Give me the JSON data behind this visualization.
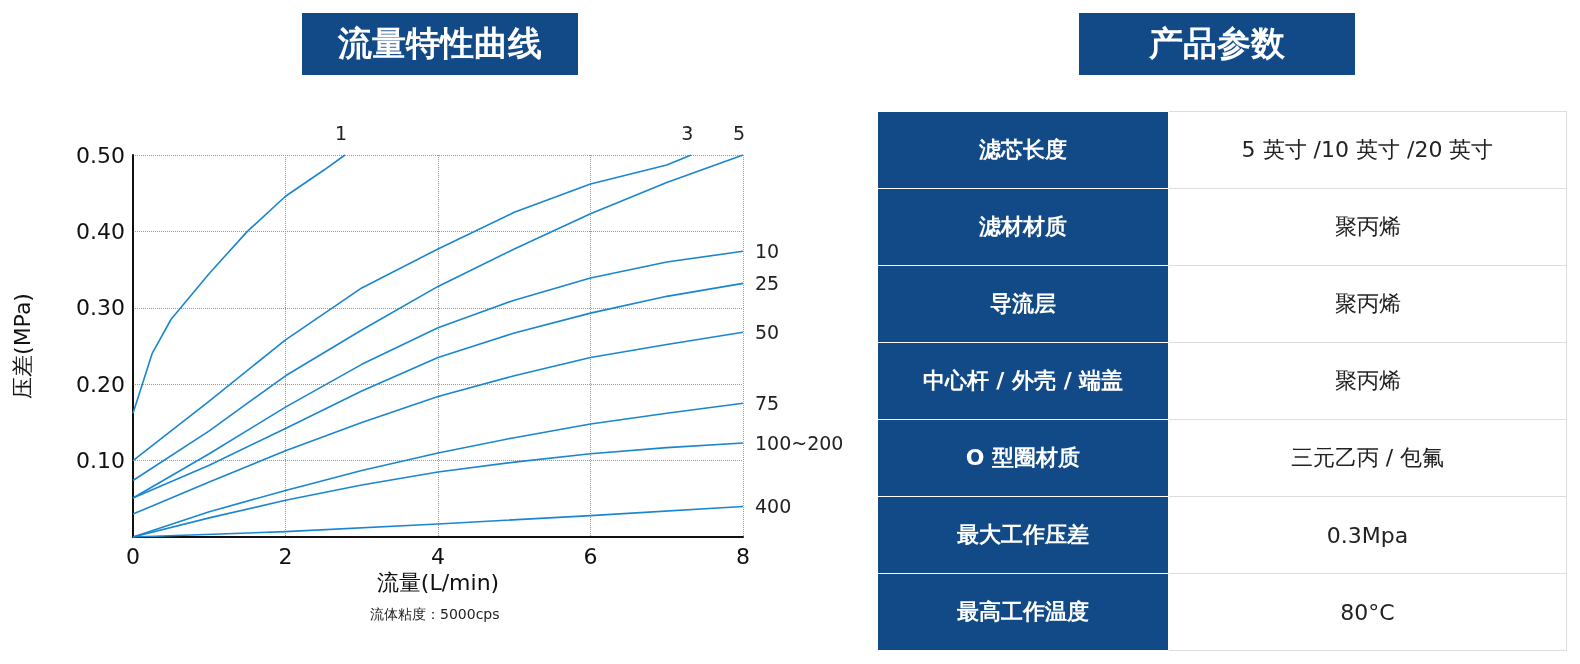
{
  "chart_data": [
    {
      "type": "line",
      "title": "流量特性曲线",
      "xlabel": "流量(L/min)",
      "ylabel": "压差(MPa)",
      "annotations": [
        "流体粘度：5000cps"
      ],
      "xlim": [
        0,
        8
      ],
      "xticks": [
        0,
        2,
        4,
        6,
        8
      ],
      "ylim": [
        0,
        0.5
      ],
      "yticks": [
        {
          "value": 0.1,
          "label": "0.10"
        },
        {
          "value": 0.2,
          "label": "0.20"
        },
        {
          "value": 0.3,
          "label": "0.30"
        },
        {
          "value": 0.4,
          "label": "0.40"
        },
        {
          "value": 0.5,
          "label": "0.50"
        }
      ],
      "grid": true,
      "marker": "none",
      "line_style": "solid",
      "tick_labels": "xy",
      "series": [
        {
          "name": "1",
          "color": "#1a86cf",
          "x": [
            0,
            0.25,
            0.5,
            1,
            1.5,
            2,
            2.5,
            2.78
          ],
          "values": [
            0.162,
            0.24,
            0.285,
            0.345,
            0.4,
            0.446,
            0.48,
            0.5
          ]
        },
        {
          "name": "3",
          "color": "#1a86cf",
          "x": [
            0,
            1,
            2,
            3,
            4,
            5,
            6,
            7,
            7.32
          ],
          "values": [
            0.1,
            0.178,
            0.258,
            0.326,
            0.377,
            0.425,
            0.462,
            0.487,
            0.5
          ]
        },
        {
          "name": "5",
          "color": "#1a86cf",
          "x": [
            0,
            1,
            2,
            3,
            4,
            5,
            6,
            7,
            8
          ],
          "values": [
            0.074,
            0.139,
            0.211,
            0.271,
            0.328,
            0.377,
            0.423,
            0.464,
            0.5
          ]
        },
        {
          "name": "10",
          "color": "#1a86cf",
          "x": [
            0,
            1,
            2,
            3,
            4,
            5,
            6,
            7,
            8
          ],
          "values": [
            0.051,
            0.109,
            0.17,
            0.226,
            0.274,
            0.31,
            0.339,
            0.36,
            0.374
          ]
        },
        {
          "name": "25",
          "color": "#1a86cf",
          "x": [
            0,
            1,
            2,
            3,
            4,
            5,
            6,
            7,
            8
          ],
          "values": [
            0.051,
            0.094,
            0.142,
            0.191,
            0.235,
            0.267,
            0.293,
            0.315,
            0.332
          ]
        },
        {
          "name": "50",
          "color": "#1a86cf",
          "x": [
            0,
            1,
            2,
            3,
            4,
            5,
            6,
            7,
            8
          ],
          "values": [
            0.03,
            0.072,
            0.113,
            0.15,
            0.184,
            0.211,
            0.235,
            0.252,
            0.268
          ]
        },
        {
          "name": "75",
          "color": "#1a86cf",
          "x": [
            0,
            1,
            2,
            3,
            4,
            5,
            6,
            7,
            8
          ],
          "values": [
            0,
            0.033,
            0.061,
            0.087,
            0.11,
            0.13,
            0.148,
            0.162,
            0.175
          ]
        },
        {
          "name": "100~200",
          "color": "#1a86cf",
          "x": [
            0,
            1,
            2,
            3,
            4,
            5,
            6,
            7,
            8
          ],
          "values": [
            0,
            0.025,
            0.048,
            0.068,
            0.085,
            0.098,
            0.109,
            0.117,
            0.123
          ]
        },
        {
          "name": "400",
          "color": "#1a86cf",
          "x": [
            0,
            2,
            4,
            6,
            8
          ],
          "values": [
            0,
            0.007,
            0.017,
            0.028,
            0.04
          ]
        }
      ]
    },
    {
      "type": "other",
      "title": "产品参数",
      "y_categories": [
        "滤芯长度",
        "滤材材质",
        "导流层",
        "中心杆 / 外壳 / 端盖",
        "O 型圈材质",
        "最大工作压差",
        "最高工作温度"
      ],
      "y2_categories": [
        "5 英寸 /10 英寸 /20 英寸",
        "聚丙烯",
        "聚丙烯",
        "聚丙烯",
        "三元乙丙 / 包氟",
        "0.3Mpa",
        "80°C"
      ]
    }
  ]
}
